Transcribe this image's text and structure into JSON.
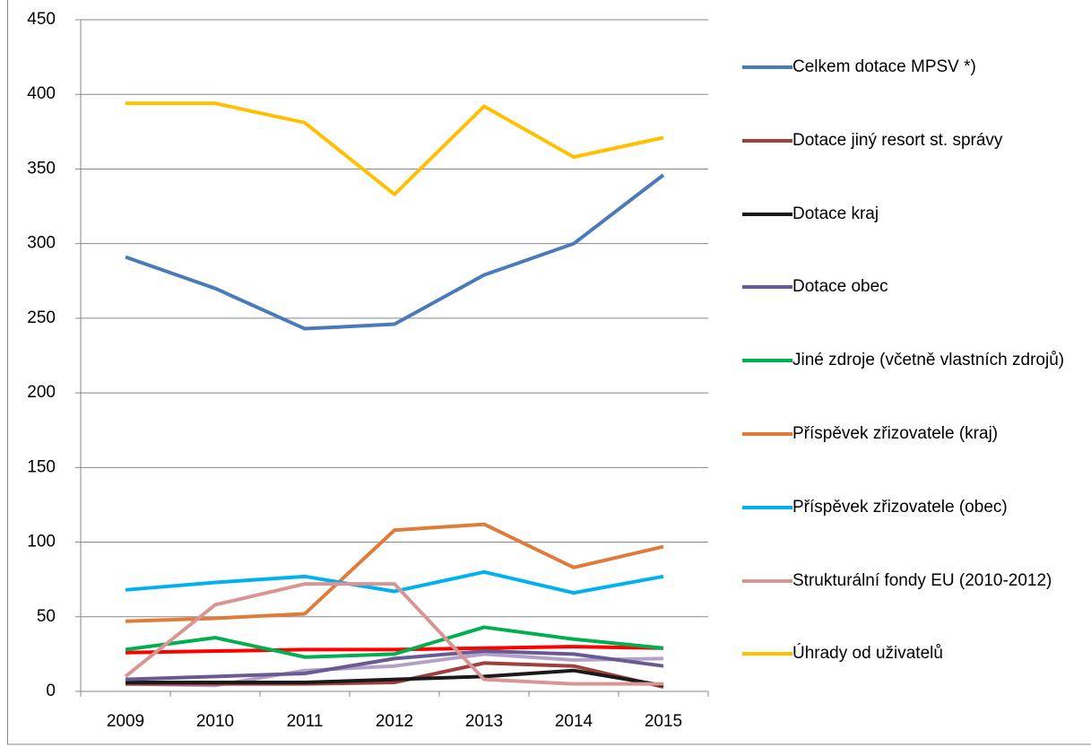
{
  "chart_data": {
    "type": "line",
    "categories": [
      "2009",
      "2010",
      "2011",
      "2012",
      "2013",
      "2014",
      "2015"
    ],
    "ylim": [
      0,
      450
    ],
    "yticks": [
      0,
      50,
      100,
      150,
      200,
      250,
      300,
      350,
      400,
      450
    ],
    "grid": true,
    "series": [
      {
        "name": "Celkem dotace MPSV *)",
        "color": "#4a7ab8",
        "values": [
          291,
          270,
          243,
          246,
          279,
          300,
          346
        ]
      },
      {
        "name": "Dotace jiný resort st. správy",
        "color": "#a0403c",
        "values": [
          5,
          5,
          5,
          6,
          19,
          17,
          3
        ]
      },
      {
        "name": "Dotace kraj",
        "color": "#1a1a1a",
        "values": [
          6,
          6,
          6,
          8,
          10,
          14,
          4
        ]
      },
      {
        "name": "Dotace obec",
        "color": "#6a5a94",
        "values": [
          8,
          10,
          12,
          22,
          27,
          25,
          17
        ]
      },
      {
        "name": "Jiné zdroje (včetně vlastních zdrojů)",
        "color": "#00b050",
        "values": [
          28,
          36,
          23,
          25,
          43,
          35,
          29
        ]
      },
      {
        "name": "Příspěvek zřizovatele (kraj)",
        "color": "#e07b39",
        "values": [
          47,
          49,
          52,
          108,
          112,
          83,
          97
        ]
      },
      {
        "name": "Příspěvek zřizovatele (obec)",
        "color": "#00b0f0",
        "values": [
          68,
          73,
          77,
          67,
          80,
          66,
          77
        ]
      },
      {
        "name": "Strukturální fondy EU (2010-2012)",
        "color": "#d99594",
        "values": [
          10,
          58,
          72,
          72,
          8,
          5,
          5
        ]
      },
      {
        "name": "Úhrady od uživatelů",
        "color": "#ffc000",
        "values": [
          394,
          394,
          381,
          333,
          392,
          358,
          371
        ]
      },
      {
        "color": "#ff0000",
        "values": [
          26,
          27,
          28,
          28,
          29,
          30,
          29
        ]
      },
      {
        "color": "#b3a2c7",
        "values": [
          5,
          4,
          14,
          17,
          25,
          21,
          22
        ]
      }
    ]
  }
}
